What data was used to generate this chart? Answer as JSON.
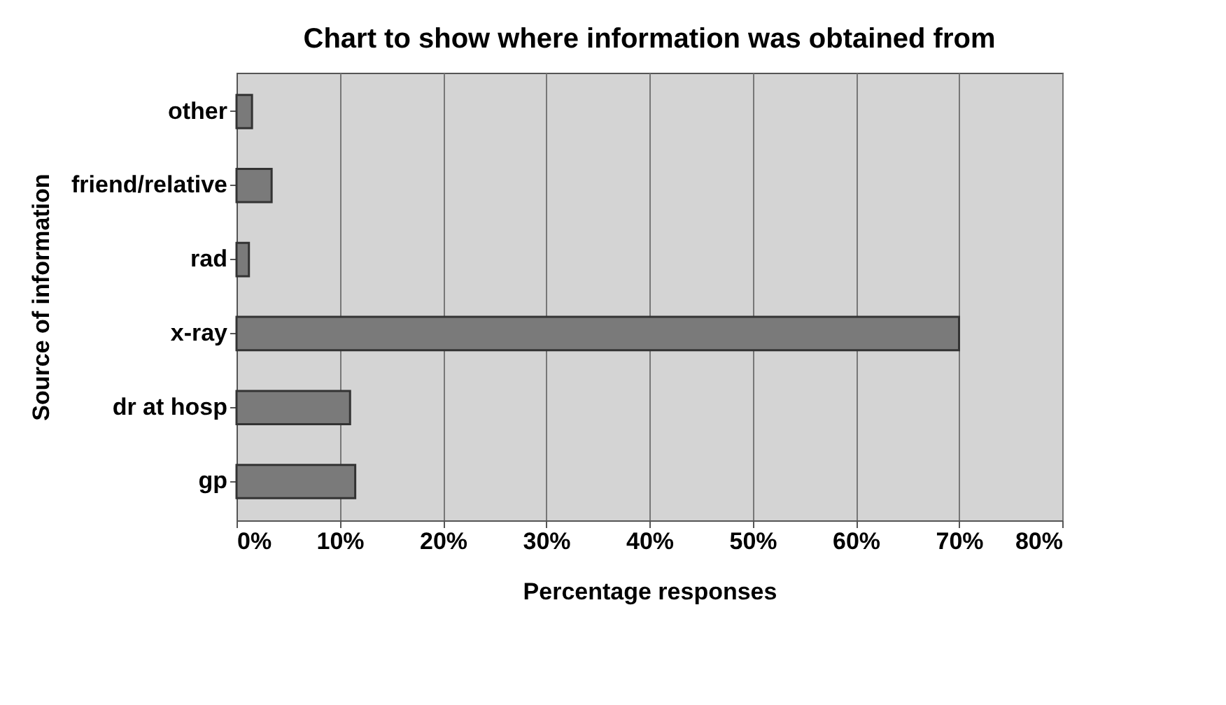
{
  "chart_data": {
    "type": "bar",
    "orientation": "horizontal",
    "title": "Chart to show where information was obtained from",
    "xlabel": "Percentage responses",
    "ylabel": "Source of information",
    "categories": [
      "other",
      "friend/relative",
      "rad",
      "x-ray",
      "dr at hosp",
      "gp"
    ],
    "values": [
      1.5,
      3.4,
      1.2,
      70,
      11,
      11.5
    ],
    "color": "#7a7a7a",
    "xlim": [
      0,
      80
    ],
    "xticks": [
      {
        "value": 0,
        "label": "0%"
      },
      {
        "value": 10,
        "label": "10%"
      },
      {
        "value": 20,
        "label": "20%"
      },
      {
        "value": 30,
        "label": "30%"
      },
      {
        "value": 40,
        "label": "40%"
      },
      {
        "value": 50,
        "label": "50%"
      },
      {
        "value": 60,
        "label": "60%"
      },
      {
        "value": 70,
        "label": "70%"
      },
      {
        "value": 80,
        "label": "80%"
      }
    ],
    "grid": "x"
  }
}
